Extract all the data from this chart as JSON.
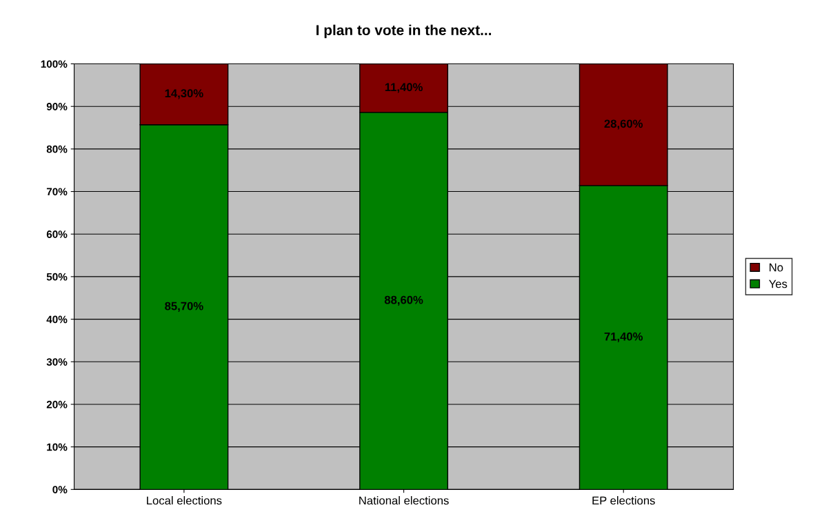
{
  "chart_data": {
    "type": "bar",
    "title": "I plan to vote in the next...",
    "categories": [
      "Local elections",
      "National elections",
      "EP elections"
    ],
    "stacked": true,
    "series": [
      {
        "name": "Yes",
        "color": "#008000",
        "values": [
          85.7,
          88.6,
          71.4
        ],
        "value_labels": [
          "85,70%",
          "88,60%",
          "71,40%"
        ]
      },
      {
        "name": "No",
        "color": "#800000",
        "values": [
          14.3,
          11.4,
          28.6
        ],
        "value_labels": [
          "14,30%",
          "11,40%",
          "28,60%"
        ]
      }
    ],
    "ylim": [
      0,
      100
    ],
    "yticks": [
      {
        "value": 0,
        "label": "0%"
      },
      {
        "value": 10,
        "label": "10%"
      },
      {
        "value": 20,
        "label": "20%"
      },
      {
        "value": 30,
        "label": "30%"
      },
      {
        "value": 40,
        "label": "40%"
      },
      {
        "value": 50,
        "label": "50%"
      },
      {
        "value": 60,
        "label": "60%"
      },
      {
        "value": 70,
        "label": "70%"
      },
      {
        "value": 80,
        "label": "80%"
      },
      {
        "value": 90,
        "label": "90%"
      },
      {
        "value": 100,
        "label": "100%"
      }
    ],
    "grid": "y",
    "legend": "right"
  }
}
